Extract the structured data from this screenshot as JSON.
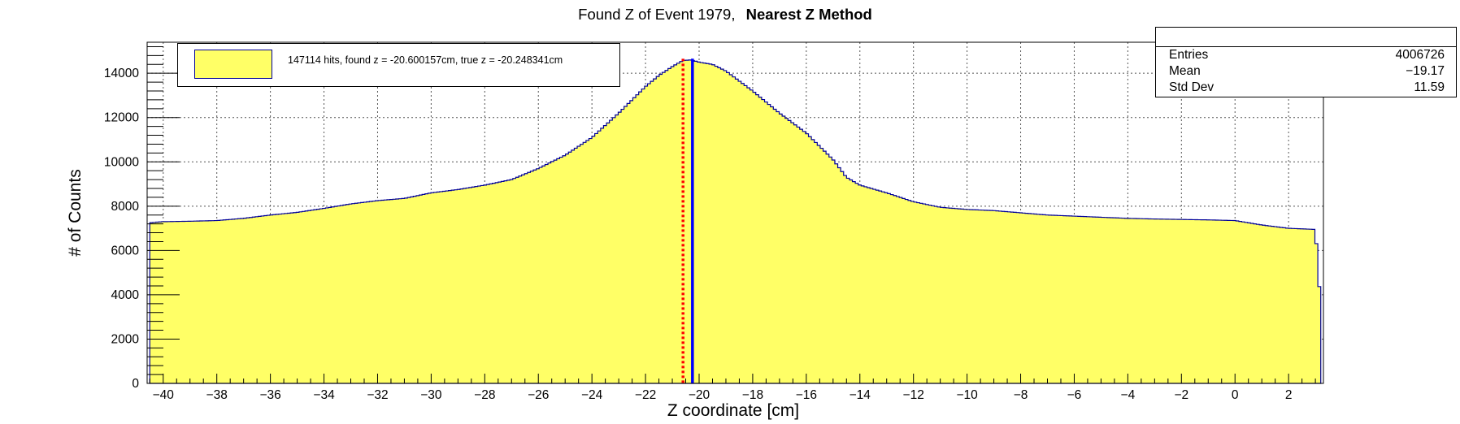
{
  "title": {
    "main": "Found Z of Event 1979,",
    "method": "Nearest Z Method"
  },
  "legend": {
    "text": "147114 hits, found z = -20.600157cm, true z = -20.248341cm"
  },
  "stats": {
    "entries_label": "Entries",
    "entries_value": "4006726",
    "mean_label": "Mean",
    "mean_value": "−19.17",
    "std_label": "Std Dev",
    "std_value": "11.59"
  },
  "colors": {
    "fill": "#ffff66",
    "outline": "#000099",
    "found_line": "#ff0000",
    "true_line": "#0000ff"
  },
  "chart_data": {
    "type": "area",
    "title": "Found Z of Event 1979, Nearest Z Method",
    "xlabel": "Z coordinate [cm]",
    "ylabel": "# of Counts",
    "xlim": [
      -40.6,
      3.3
    ],
    "ylim": [
      0,
      15400
    ],
    "grid": true,
    "legend_position": "top-left",
    "xticks": [
      -40,
      -38,
      -36,
      -34,
      -32,
      -30,
      -28,
      -26,
      -24,
      -22,
      -20,
      -18,
      -16,
      -14,
      -12,
      -10,
      -8,
      -6,
      -4,
      -2,
      0,
      2
    ],
    "yticks": [
      0,
      2000,
      4000,
      6000,
      8000,
      10000,
      12000,
      14000
    ],
    "series": [
      {
        "x": [
          -40.5,
          -40,
          -39,
          -38,
          -37,
          -36,
          -35,
          -34,
          -33,
          -32,
          -31,
          -30,
          -29,
          -28,
          -27,
          -26,
          -25,
          -24,
          -23,
          -22.5,
          -22,
          -21.5,
          -21,
          -20.6,
          -20.3,
          -20,
          -19.5,
          -19,
          -18,
          -17,
          -16,
          -15,
          -14.5,
          -14,
          -13,
          -12,
          -11,
          -10,
          -9,
          -8,
          -7,
          -6,
          -5,
          -4,
          -3,
          -2,
          -1,
          0,
          1,
          2,
          3,
          3.2
        ],
        "y": [
          7250,
          7300,
          7320,
          7350,
          7450,
          7600,
          7720,
          7900,
          8100,
          8250,
          8350,
          8600,
          8750,
          8950,
          9200,
          9700,
          10300,
          11100,
          12200,
          12800,
          13400,
          13900,
          14300,
          14580,
          14600,
          14500,
          14400,
          14100,
          13200,
          12200,
          11300,
          10100,
          9300,
          8950,
          8600,
          8200,
          7950,
          7850,
          7800,
          7700,
          7600,
          7550,
          7500,
          7450,
          7420,
          7400,
          7380,
          7350,
          7150,
          7000,
          6950,
          3400
        ]
      }
    ],
    "annotations": [
      {
        "label": "found z",
        "x": -20.600157,
        "style": "dotted",
        "color": "#ff0000"
      },
      {
        "label": "true z",
        "x": -20.248341,
        "style": "solid",
        "color": "#0000ff"
      }
    ]
  }
}
